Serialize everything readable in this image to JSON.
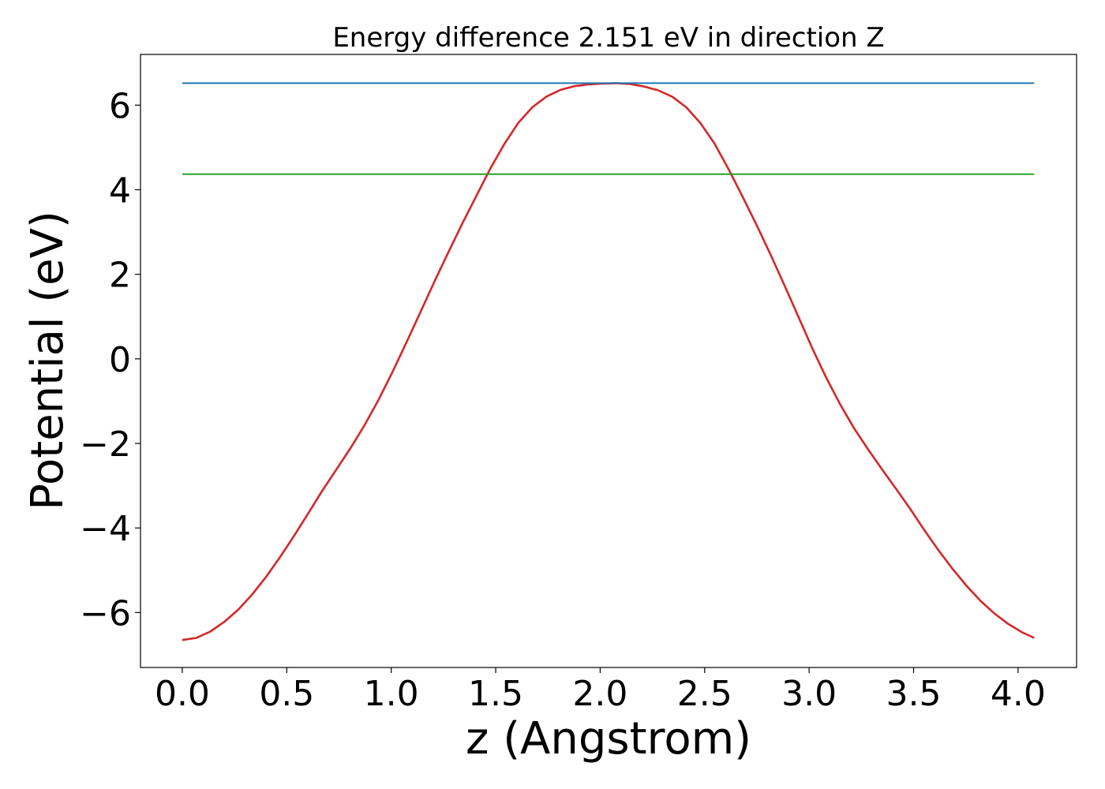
{
  "chart_data": {
    "type": "line",
    "title": "Energy difference 2.151 eV in direction Z",
    "xlabel": "z (Angstrom)",
    "ylabel": "Potential (eV)",
    "xlim": [
      -0.2,
      4.28
    ],
    "ylim": [
      -7.3,
      7.2
    ],
    "xticks": [
      0.0,
      0.5,
      1.0,
      1.5,
      2.0,
      2.5,
      3.0,
      3.5,
      4.0
    ],
    "xtick_labels": [
      "0.0",
      "0.5",
      "1.0",
      "1.5",
      "2.0",
      "2.5",
      "3.0",
      "3.5",
      "4.0"
    ],
    "yticks": [
      -6,
      -4,
      -2,
      0,
      2,
      4,
      6
    ],
    "ytick_labels": [
      "−6",
      "−4",
      "−2",
      "0",
      "2",
      "4",
      "6"
    ],
    "grid": false,
    "legend": "none",
    "series": [
      {
        "color": "#d62728",
        "x": [
          0.0,
          0.067,
          0.134,
          0.201,
          0.268,
          0.335,
          0.402,
          0.469,
          0.536,
          0.603,
          0.67,
          0.737,
          0.804,
          0.871,
          0.938,
          1.005,
          1.072,
          1.139,
          1.206,
          1.273,
          1.34,
          1.407,
          1.474,
          1.541,
          1.608,
          1.675,
          1.742,
          1.809,
          1.876,
          1.943,
          2.01,
          2.077,
          2.144,
          2.211,
          2.278,
          2.345,
          2.412,
          2.479,
          2.546,
          2.613,
          2.68,
          2.747,
          2.814,
          2.881,
          2.948,
          3.015,
          3.082,
          3.149,
          3.216,
          3.283,
          3.35,
          3.417,
          3.484,
          3.551,
          3.618,
          3.685,
          3.752,
          3.819,
          3.886,
          3.953,
          4.02,
          4.077
        ],
        "y": [
          -6.65,
          -6.6,
          -6.45,
          -6.22,
          -5.93,
          -5.57,
          -5.15,
          -4.68,
          -4.18,
          -3.65,
          -3.12,
          -2.62,
          -2.12,
          -1.58,
          -0.98,
          -0.32,
          0.38,
          1.1,
          1.82,
          2.52,
          3.2,
          3.85,
          4.5,
          5.08,
          5.58,
          5.95,
          6.2,
          6.36,
          6.45,
          6.49,
          6.51,
          6.52,
          6.5,
          6.44,
          6.35,
          6.2,
          5.95,
          5.58,
          5.1,
          4.5,
          3.85,
          3.18,
          2.48,
          1.75,
          1.0,
          0.25,
          -0.45,
          -1.08,
          -1.65,
          -2.15,
          -2.62,
          -3.08,
          -3.55,
          -4.05,
          -4.52,
          -4.96,
          -5.36,
          -5.72,
          -6.02,
          -6.27,
          -6.47,
          -6.6
        ]
      },
      {
        "color": "#1f77b4",
        "x": [
          0.0,
          4.077
        ],
        "y": [
          6.52,
          6.52
        ]
      },
      {
        "color": "#2ca02c",
        "x": [
          0.0,
          4.077
        ],
        "y": [
          4.369,
          4.369
        ]
      }
    ]
  }
}
